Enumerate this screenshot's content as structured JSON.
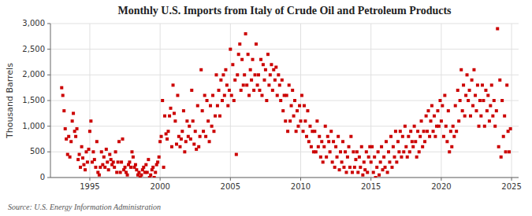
{
  "chart_data": {
    "type": "scatter",
    "title": "Monthly U.S. Imports from Italy of Crude Oil and Petroleum Products",
    "ylabel": "Thousand Barrels",
    "source": "Source: U.S. Energy Information Administration",
    "color": "#cc0000",
    "marker": "square",
    "grid": true,
    "xlim": [
      1992.2,
      2025.5
    ],
    "ylim": [
      0,
      3000
    ],
    "xticks": [
      1995,
      2000,
      2005,
      2010,
      2015,
      2020,
      2025
    ],
    "yticks": [
      0,
      500,
      {
        "value": 1000,
        "label": "1,000"
      },
      {
        "value": 1500,
        "label": "1,500"
      },
      {
        "value": 2000,
        "label": "2,000"
      },
      {
        "value": 2500,
        "label": "2,500"
      },
      {
        "value": 3000,
        "label": "3,000"
      }
    ],
    "x": [
      1993.0,
      1993.08,
      1993.17,
      1993.25,
      1993.33,
      1993.42,
      1993.5,
      1993.58,
      1993.67,
      1993.75,
      1993.83,
      1993.92,
      1994.0,
      1994.08,
      1994.17,
      1994.25,
      1994.33,
      1994.42,
      1994.5,
      1994.58,
      1994.67,
      1994.75,
      1994.83,
      1994.92,
      1995.0,
      1995.08,
      1995.17,
      1995.25,
      1995.33,
      1995.42,
      1995.5,
      1995.58,
      1995.67,
      1995.75,
      1995.83,
      1995.92,
      1996.0,
      1996.08,
      1996.17,
      1996.25,
      1996.33,
      1996.42,
      1996.5,
      1996.58,
      1996.67,
      1996.75,
      1996.83,
      1996.92,
      1997.0,
      1997.08,
      1997.17,
      1997.25,
      1997.33,
      1997.42,
      1997.5,
      1997.58,
      1997.67,
      1997.75,
      1997.83,
      1997.92,
      1998.0,
      1998.08,
      1998.17,
      1998.25,
      1998.33,
      1998.42,
      1998.5,
      1998.58,
      1998.67,
      1998.75,
      1998.83,
      1998.92,
      1999.0,
      1999.08,
      1999.17,
      1999.25,
      1999.33,
      1999.42,
      1999.5,
      1999.58,
      1999.67,
      1999.75,
      1999.83,
      1999.92,
      2000.0,
      2000.08,
      2000.17,
      2000.25,
      2000.33,
      2000.42,
      2000.5,
      2000.58,
      2000.67,
      2000.75,
      2000.83,
      2000.92,
      2001.0,
      2001.08,
      2001.17,
      2001.25,
      2001.33,
      2001.42,
      2001.5,
      2001.58,
      2001.67,
      2001.75,
      2001.83,
      2001.92,
      2002.0,
      2002.08,
      2002.17,
      2002.25,
      2002.33,
      2002.42,
      2002.5,
      2002.58,
      2002.67,
      2002.75,
      2002.83,
      2002.92,
      2003.0,
      2003.08,
      2003.17,
      2003.25,
      2003.33,
      2003.42,
      2003.5,
      2003.58,
      2003.67,
      2003.75,
      2003.83,
      2003.92,
      2004.0,
      2004.08,
      2004.17,
      2004.25,
      2004.33,
      2004.42,
      2004.5,
      2004.58,
      2004.67,
      2004.75,
      2004.83,
      2004.92,
      2005.0,
      2005.08,
      2005.17,
      2005.25,
      2005.33,
      2005.42,
      2005.5,
      2005.58,
      2005.67,
      2005.75,
      2005.83,
      2005.92,
      2006.0,
      2006.08,
      2006.17,
      2006.25,
      2006.33,
      2006.42,
      2006.5,
      2006.58,
      2006.67,
      2006.75,
      2006.83,
      2006.92,
      2007.0,
      2007.08,
      2007.17,
      2007.25,
      2007.33,
      2007.42,
      2007.5,
      2007.58,
      2007.67,
      2007.75,
      2007.83,
      2007.92,
      2008.0,
      2008.08,
      2008.17,
      2008.25,
      2008.33,
      2008.42,
      2008.5,
      2008.58,
      2008.67,
      2008.75,
      2008.83,
      2008.92,
      2009.0,
      2009.08,
      2009.17,
      2009.25,
      2009.33,
      2009.42,
      2009.5,
      2009.58,
      2009.67,
      2009.75,
      2009.83,
      2009.92,
      2010.0,
      2010.08,
      2010.17,
      2010.25,
      2010.33,
      2010.42,
      2010.5,
      2010.58,
      2010.67,
      2010.75,
      2010.83,
      2010.92,
      2011.0,
      2011.08,
      2011.17,
      2011.25,
      2011.33,
      2011.42,
      2011.5,
      2011.58,
      2011.67,
      2011.75,
      2011.83,
      2011.92,
      2012.0,
      2012.08,
      2012.17,
      2012.25,
      2012.33,
      2012.42,
      2012.5,
      2012.58,
      2012.67,
      2012.75,
      2012.83,
      2012.92,
      2013.0,
      2013.08,
      2013.17,
      2013.25,
      2013.33,
      2013.42,
      2013.5,
      2013.58,
      2013.67,
      2013.75,
      2013.83,
      2013.92,
      2014.0,
      2014.08,
      2014.17,
      2014.25,
      2014.33,
      2014.42,
      2014.5,
      2014.58,
      2014.67,
      2014.75,
      2014.83,
      2014.92,
      2015.0,
      2015.08,
      2015.17,
      2015.25,
      2015.33,
      2015.42,
      2015.5,
      2015.58,
      2015.67,
      2015.75,
      2015.83,
      2015.92,
      2016.0,
      2016.08,
      2016.17,
      2016.25,
      2016.33,
      2016.42,
      2016.5,
      2016.58,
      2016.67,
      2016.75,
      2016.83,
      2016.92,
      2017.0,
      2017.08,
      2017.17,
      2017.25,
      2017.33,
      2017.42,
      2017.5,
      2017.58,
      2017.67,
      2017.75,
      2017.83,
      2017.92,
      2018.0,
      2018.08,
      2018.17,
      2018.25,
      2018.33,
      2018.42,
      2018.5,
      2018.58,
      2018.67,
      2018.75,
      2018.83,
      2018.92,
      2019.0,
      2019.08,
      2019.17,
      2019.25,
      2019.33,
      2019.42,
      2019.5,
      2019.58,
      2019.67,
      2019.75,
      2019.83,
      2019.92,
      2020.0,
      2020.08,
      2020.17,
      2020.25,
      2020.33,
      2020.42,
      2020.5,
      2020.58,
      2020.67,
      2020.75,
      2020.83,
      2020.92,
      2021.0,
      2021.08,
      2021.17,
      2021.25,
      2021.33,
      2021.42,
      2021.5,
      2021.58,
      2021.67,
      2021.75,
      2021.83,
      2021.92,
      2022.0,
      2022.08,
      2022.17,
      2022.25,
      2022.33,
      2022.42,
      2022.5,
      2022.58,
      2022.67,
      2022.75,
      2022.83,
      2022.92,
      2023.0,
      2023.08,
      2023.17,
      2023.25,
      2023.33,
      2023.42,
      2023.5,
      2023.58,
      2023.67,
      2023.75,
      2023.83,
      2023.92,
      2024.0,
      2024.08,
      2024.17,
      2024.25,
      2024.33,
      2024.42,
      2024.5,
      2024.58,
      2024.67,
      2024.75,
      2024.83,
      2024.92
    ],
    "values": [
      1750,
      1600,
      1300,
      950,
      750,
      450,
      800,
      400,
      700,
      1100,
      1250,
      900,
      800,
      950,
      350,
      450,
      200,
      600,
      380,
      250,
      150,
      500,
      300,
      550,
      900,
      1100,
      300,
      500,
      350,
      200,
      700,
      100,
      50,
      200,
      500,
      250,
      400,
      200,
      550,
      300,
      150,
      450,
      350,
      250,
      300,
      200,
      500,
      100,
      300,
      700,
      100,
      300,
      750,
      150,
      200,
      100,
      50,
      250,
      300,
      200,
      500,
      400,
      200,
      250,
      150,
      50,
      100,
      0,
      50,
      150,
      200,
      100,
      250,
      100,
      350,
      0,
      50,
      150,
      200,
      0,
      100,
      250,
      300,
      400,
      700,
      800,
      1500,
      200,
      1200,
      850,
      750,
      900,
      1200,
      1350,
      600,
      1800,
      1250,
      1100,
      650,
      1600,
      800,
      600,
      750,
      900,
      1300,
      500,
      700,
      1100,
      800,
      1000,
      750,
      1700,
      1100,
      650,
      900,
      550,
      1400,
      600,
      800,
      2100,
      1300,
      900,
      1600,
      800,
      1500,
      1100,
      700,
      1400,
      1000,
      1600,
      900,
      1200,
      2000,
      1400,
      1700,
      1200,
      1900,
      1500,
      2000,
      1600,
      2100,
      1800,
      1400,
      1700,
      2500,
      1600,
      2200,
      1500,
      1900,
      450,
      2000,
      2400,
      2600,
      1700,
      2300,
      1800,
      2000,
      2800,
      1800,
      2400,
      1600,
      2100,
      1900,
      2300,
      1700,
      2000,
      2600,
      1800,
      2000,
      1700,
      2300,
      1600,
      2200,
      1900,
      2100,
      1500,
      2400,
      1800,
      2000,
      2200,
      1700,
      2100,
      1900,
      2150,
      1600,
      2000,
      1800,
      1500,
      1900,
      1300,
      1600,
      1100,
      1600,
      900,
      1800,
      1100,
      1400,
      1700,
      1200,
      1500,
      900,
      1300,
      1000,
      1400,
      1100,
      1600,
      900,
      1400,
      1100,
      800,
      1300,
      700,
      1000,
      600,
      900,
      500,
      900,
      500,
      1100,
      600,
      800,
      400,
      700,
      300,
      600,
      1000,
      400,
      800,
      700,
      500,
      900,
      300,
      700,
      200,
      600,
      400,
      800,
      150,
      500,
      300,
      700,
      200,
      500,
      100,
      400,
      600,
      200,
      800,
      100,
      500,
      200,
      350,
      500,
      100,
      400,
      200,
      600,
      50,
      300,
      150,
      500,
      100,
      400,
      600,
      300,
      600,
      100,
      400,
      0,
      200,
      500,
      50,
      300,
      600,
      150,
      400,
      200,
      700,
      100,
      500,
      300,
      800,
      200,
      600,
      400,
      900,
      300,
      700,
      500,
      900,
      400,
      800,
      500,
      1000,
      600,
      400,
      800,
      500,
      900,
      700,
      600,
      1000,
      700,
      400,
      900,
      500,
      800,
      1100,
      600,
      900,
      700,
      1200,
      900,
      1300,
      800,
      1100,
      1400,
      900,
      1200,
      800,
      1000,
      1300,
      1000,
      1500,
      1100,
      1400,
      800,
      1600,
      1000,
      700,
      1300,
      500,
      900,
      600,
      1000,
      800,
      1400,
      900,
      1700,
      1100,
      1500,
      2100,
      1300,
      1800,
      1200,
      1600,
      2000,
      1500,
      1700,
      1200,
      1900,
      1400,
      2100,
      1600,
      1300,
      1800,
      1000,
      1500,
      1200,
      1800,
      1500,
      1000,
      1700,
      1300,
      1600,
      1100,
      1400,
      1800,
      1200,
      1500,
      1000,
      1300,
      2900,
      600,
      1900,
      400,
      1500,
      800,
      1200,
      500,
      1800,
      900,
      500,
      950
    ]
  }
}
